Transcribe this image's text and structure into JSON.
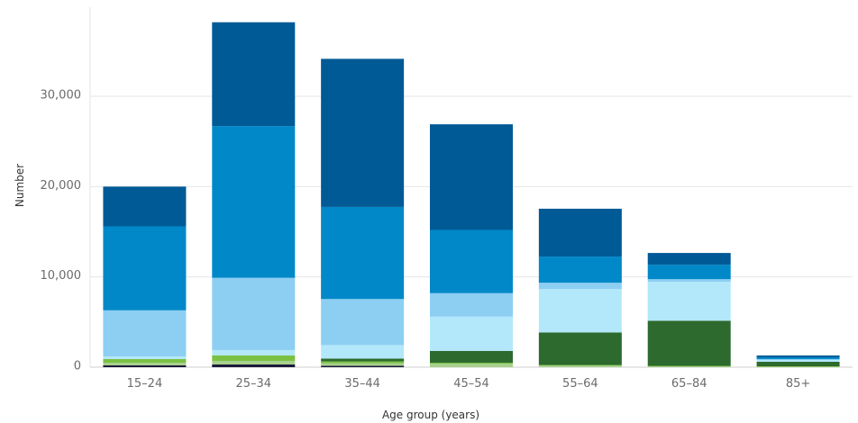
{
  "chart_data": {
    "type": "bar",
    "stacked": true,
    "title": "",
    "xlabel": "Age group (years)",
    "ylabel": "Number",
    "ylim": [
      0,
      40000
    ],
    "yticks": [
      0,
      10000,
      20000,
      30000
    ],
    "ytick_labels": [
      "0",
      "10,000",
      "20,000",
      "30,000"
    ],
    "grid": true,
    "legend": "none",
    "categories": [
      "15–24",
      "25–34",
      "35–44",
      "45–54",
      "55–64",
      "65–84",
      "85+"
    ],
    "series": [
      {
        "color": "#1d1b3a",
        "values": [
          200,
          300,
          150,
          0,
          0,
          0,
          0
        ]
      },
      {
        "color": "#a8d08d",
        "values": [
          300,
          400,
          300,
          400,
          200,
          100,
          50
        ]
      },
      {
        "color": "#7ac143",
        "values": [
          400,
          600,
          200,
          100,
          50,
          50,
          50
        ]
      },
      {
        "color": "#2d6a2e",
        "values": [
          0,
          0,
          300,
          1300,
          3600,
          5000,
          500
        ]
      },
      {
        "color": "#b3e8fb",
        "values": [
          300,
          600,
          1500,
          3800,
          4800,
          4300,
          200
        ]
      },
      {
        "color": "#8ccff2",
        "values": [
          5100,
          8000,
          5100,
          2600,
          700,
          300,
          100
        ]
      },
      {
        "color": "#0088c8",
        "values": [
          9300,
          16800,
          10200,
          7000,
          2900,
          1600,
          200
        ]
      },
      {
        "color": "#005a96",
        "values": [
          4400,
          11500,
          16400,
          11700,
          5300,
          1300,
          200
        ]
      }
    ]
  }
}
